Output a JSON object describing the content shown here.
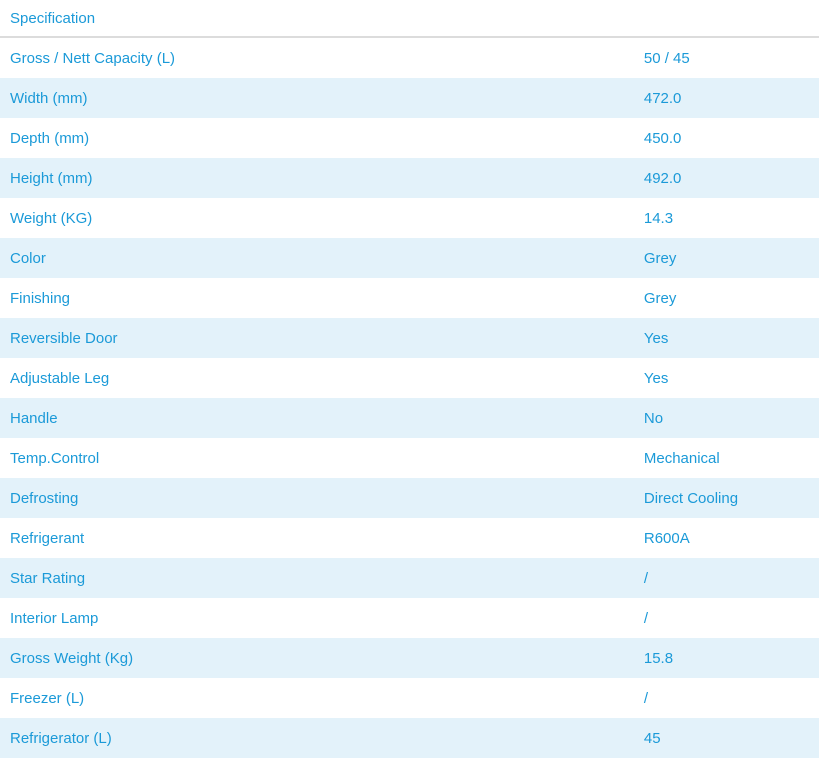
{
  "header": {
    "title": "Specification"
  },
  "rows": [
    {
      "label": "Gross / Nett Capacity (L)",
      "value": "50 / 45"
    },
    {
      "label": "Width (mm)",
      "value": "472.0"
    },
    {
      "label": "Depth (mm)",
      "value": "450.0"
    },
    {
      "label": "Height (mm)",
      "value": "492.0"
    },
    {
      "label": "Weight (KG)",
      "value": "14.3"
    },
    {
      "label": "Color",
      "value": "Grey"
    },
    {
      "label": "Finishing",
      "value": "Grey"
    },
    {
      "label": "Reversible Door",
      "value": "Yes"
    },
    {
      "label": "Adjustable Leg",
      "value": "Yes"
    },
    {
      "label": "Handle",
      "value": "No"
    },
    {
      "label": "Temp.Control",
      "value": "Mechanical"
    },
    {
      "label": "Defrosting",
      "value": "Direct Cooling"
    },
    {
      "label": "Refrigerant",
      "value": "R600A"
    },
    {
      "label": "Star Rating",
      "value": "/"
    },
    {
      "label": "Interior Lamp",
      "value": "/"
    },
    {
      "label": "Gross Weight (Kg)",
      "value": "15.8"
    },
    {
      "label": "Freezer (L)",
      "value": "/"
    },
    {
      "label": "Refrigerator (L)",
      "value": "45"
    }
  ]
}
